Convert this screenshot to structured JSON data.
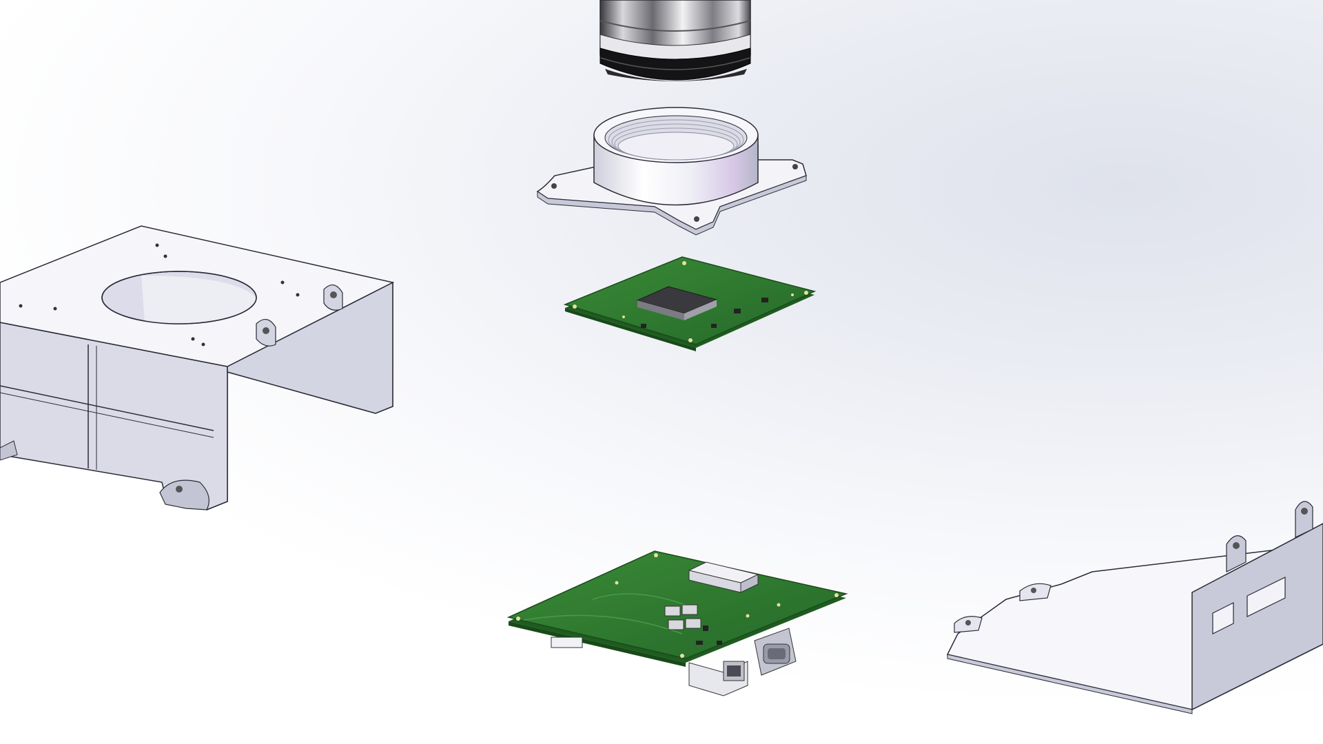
{
  "scene": {
    "type": "exploded-assembly-cad-render",
    "background_color": "#eef0f5",
    "components": [
      {
        "id": "lens-barrel",
        "depicts": "camera-lens-barrel"
      },
      {
        "id": "lens-mount",
        "depicts": "threaded-lens-mount-flange"
      },
      {
        "id": "sensor-pcb",
        "depicts": "image-sensor-circuit-board"
      },
      {
        "id": "chassis-bracket",
        "depicts": "sheet-metal-chassis-bracket"
      },
      {
        "id": "main-pcb",
        "depicts": "interface-circuit-board-with-connectors"
      },
      {
        "id": "cover-bracket",
        "depicts": "sheet-metal-cover-bracket"
      }
    ],
    "colors": {
      "pcb_green": "#2d7a2c",
      "pcb_dark": "#1e5c1f",
      "metal_light": "#f4f4fa",
      "metal_side": "#c9cad9",
      "outline": "#2a2a35",
      "chip": "#3c3c40"
    }
  }
}
